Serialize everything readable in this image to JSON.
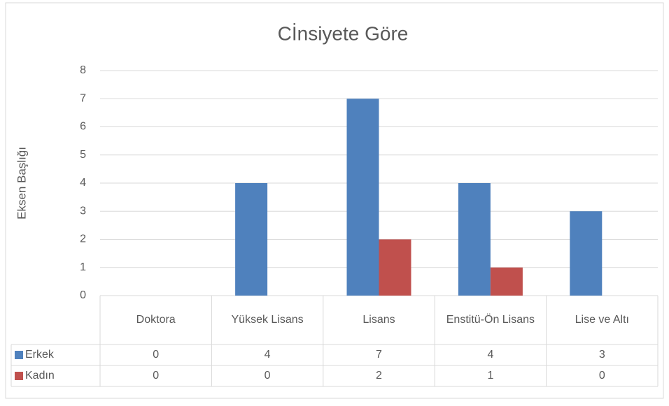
{
  "chart_data": {
    "type": "bar",
    "title": "Cİnsiyete Göre",
    "y_label": "Eksen Başlığı",
    "categories": [
      "Doktora",
      "Yüksek Lisans",
      "Lisans",
      "Enstitü-Ön Lisans",
      "Lise ve Altı"
    ],
    "series": [
      {
        "name": "Erkek",
        "color": "#4f81bd",
        "values": [
          0,
          4,
          7,
          4,
          3
        ]
      },
      {
        "name": "Kadın",
        "color": "#c0504d",
        "values": [
          0,
          0,
          2,
          1,
          0
        ]
      }
    ],
    "ylim": [
      0,
      8
    ],
    "yticks": [
      0,
      1,
      2,
      3,
      4,
      5,
      6,
      7,
      8
    ],
    "grid": true,
    "data_table": true
  }
}
